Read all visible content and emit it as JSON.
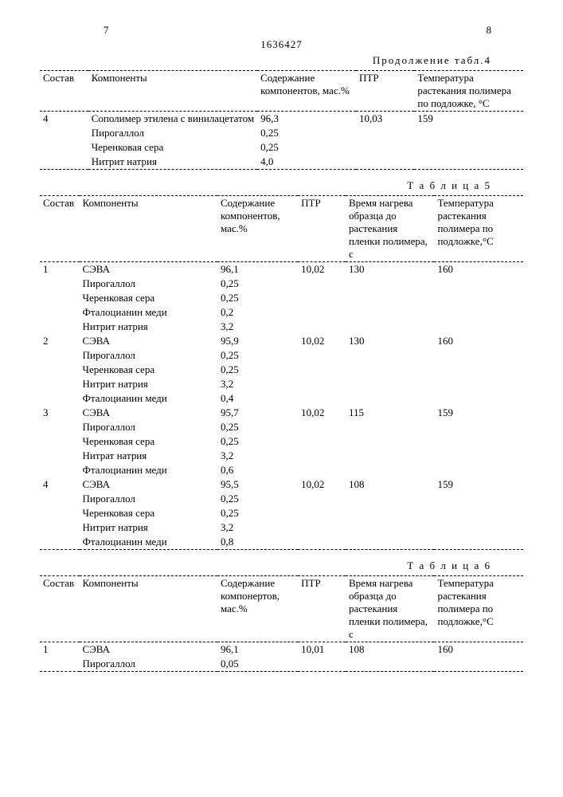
{
  "page_left": "7",
  "page_right": "8",
  "doc_number": "1636427",
  "table4": {
    "caption": "Продолжение табл.4",
    "headers": {
      "sostav": "Состав",
      "components": "Компоненты",
      "content": "Содержание компонентов, мас.%",
      "ptr": "ПТР",
      "temp": "Температура растекания полимера по подложке, °С"
    },
    "groups": [
      {
        "sostav": "4",
        "ptr": "10,03",
        "temp": "159",
        "rows": [
          {
            "comp": "Сополимер этилена с винилацетатом",
            "val": "96,3"
          },
          {
            "comp": "Пирогаллол",
            "val": "0,25"
          },
          {
            "comp": "Черенковая сера",
            "val": "0,25"
          },
          {
            "comp": "Нитрит натрия",
            "val": "4,0"
          }
        ]
      }
    ]
  },
  "table5": {
    "caption": "Т а б л и ц а   5",
    "headers": {
      "sostav": "Состав",
      "components": "Компоненты",
      "content": "Содержание компонентов, мас.%",
      "ptr": "ПТР",
      "time": "Время нагрева образца до растекания пленки полимера, с",
      "temp": "Температура растекания полимера по подложке,°С"
    },
    "groups": [
      {
        "sostav": "1",
        "ptr": "10,02",
        "time": "130",
        "temp": "160",
        "rows": [
          {
            "comp": "СЭВА",
            "val": "96,1"
          },
          {
            "comp": "Пирогаллол",
            "val": "0,25"
          },
          {
            "comp": "Черенковая сера",
            "val": "0,25"
          },
          {
            "comp": "Фталоцианин меди",
            "val": "0,2"
          },
          {
            "comp": "Нитрит натрия",
            "val": "3,2"
          }
        ]
      },
      {
        "sostav": "2",
        "ptr": "10,02",
        "time": "130",
        "temp": "160",
        "rows": [
          {
            "comp": "СЭВА",
            "val": "95,9"
          },
          {
            "comp": "Пирогаллол",
            "val": "0,25"
          },
          {
            "comp": "Черенковая сера",
            "val": "0,25"
          },
          {
            "comp": "Нитрит натрия",
            "val": "3,2"
          },
          {
            "comp": "Фталоцианин меди",
            "val": "0,4"
          }
        ]
      },
      {
        "sostav": "3",
        "ptr": "10,02",
        "time": "115",
        "temp": "159",
        "rows": [
          {
            "comp": "СЭВА",
            "val": "95,7"
          },
          {
            "comp": "Пирогаллол",
            "val": "0,25"
          },
          {
            "comp": "Черенковая сера",
            "val": "0,25"
          },
          {
            "comp": "Нитрат натрия",
            "val": "3,2"
          },
          {
            "comp": "Фталоцианин меди",
            "val": "0,6"
          }
        ]
      },
      {
        "sostav": "4",
        "ptr": "10,02",
        "time": "108",
        "temp": "159",
        "rows": [
          {
            "comp": "СЭВА",
            "val": "95,5"
          },
          {
            "comp": "Пирогаллол",
            "val": "0,25"
          },
          {
            "comp": "Черенковая сера",
            "val": "0,25"
          },
          {
            "comp": "Нитрит натрия",
            "val": "3,2"
          },
          {
            "comp": "Фталоцианин меди",
            "val": "0,8"
          }
        ]
      }
    ]
  },
  "table6": {
    "caption": "Т а б л и ц а   6",
    "headers": {
      "sostav": "Состав",
      "components": "Компоненты",
      "content": "Содержание компонертов, мас.%",
      "ptr": "ПТР",
      "time": "Время нагрева образца до растекания пленки полимера, с",
      "temp": "Температура растекания полимера по подложке,°С"
    },
    "groups": [
      {
        "sostav": "1",
        "ptr": "10,01",
        "time": "108",
        "temp": "160",
        "rows": [
          {
            "comp": "СЭВА",
            "val": "96,1"
          },
          {
            "comp": "Пирогаллол",
            "val": "0,05"
          }
        ]
      }
    ]
  }
}
